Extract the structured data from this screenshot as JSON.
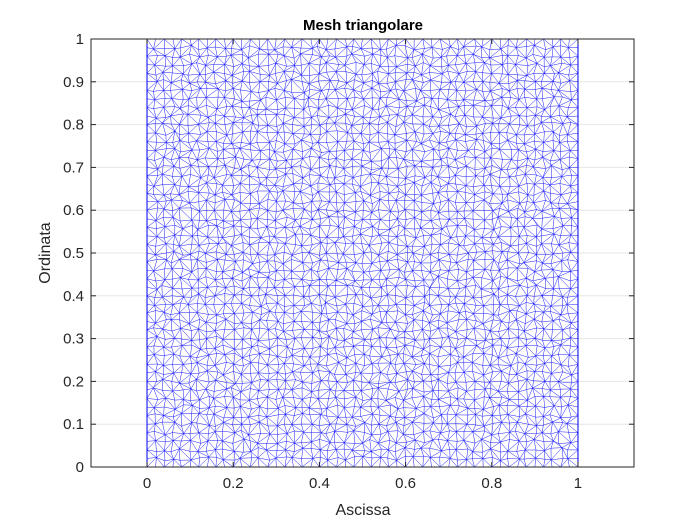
{
  "colors": {
    "background": "#ffffff",
    "axes": "#262626",
    "grid": "#e6e6e6",
    "mesh": "#0000ff"
  },
  "chart_data": {
    "type": "mesh",
    "title": "Mesh triangolare",
    "xlabel": "Ascissa",
    "ylabel": "Ordinata",
    "xlim": [
      -0.13,
      1.13
    ],
    "ylim": [
      0,
      1
    ],
    "xticks": [
      0,
      0.2,
      0.4,
      0.6,
      0.8,
      1
    ],
    "xtick_labels": [
      "0",
      "0.2",
      "0.4",
      "0.6",
      "0.8",
      "1"
    ],
    "yticks": [
      0,
      0.1,
      0.2,
      0.3,
      0.4,
      0.5,
      0.6,
      0.7,
      0.8,
      0.9,
      1
    ],
    "ytick_labels": [
      "0",
      "0.1",
      "0.2",
      "0.3",
      "0.4",
      "0.5",
      "0.6",
      "0.7",
      "0.8",
      "0.9",
      "1"
    ],
    "grid": true,
    "domain": {
      "x": [
        0,
        1
      ],
      "y": [
        0,
        1
      ]
    },
    "mesh_color": "#0000ff",
    "mesh_divisions": 50
  }
}
